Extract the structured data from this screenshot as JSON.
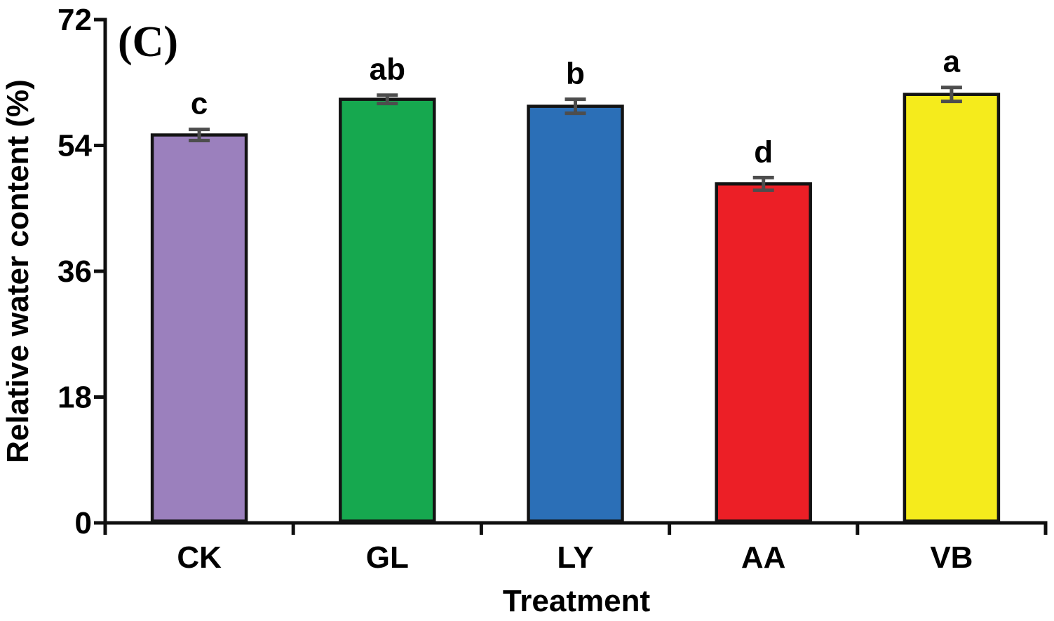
{
  "panel_label": "(C)",
  "chart_data": {
    "type": "bar",
    "title": "",
    "categories": [
      "CK",
      "GL",
      "LY",
      "AA",
      "VB"
    ],
    "values": [
      55.5,
      60.6,
      59.6,
      48.5,
      61.3
    ],
    "errors": [
      0.8,
      0.6,
      1.0,
      0.9,
      1.0
    ],
    "sig_letters": [
      "c",
      "ab",
      "b",
      "d",
      "a"
    ],
    "bar_colors": [
      "#9b80bd",
      "#16a84f",
      "#2b6fb7",
      "#ec1f26",
      "#f5eb1c"
    ],
    "bar_border_color": "#131313",
    "error_bar_color": "#4d4d4d",
    "axis_color": "#0f0f0f",
    "text_color": "#000000",
    "xlabel": "Treatment",
    "ylabel": "Relative water content (%)",
    "ylim": [
      0,
      72
    ],
    "yticks": [
      0,
      18,
      36,
      54,
      72
    ],
    "grid": false,
    "legend": "none"
  }
}
